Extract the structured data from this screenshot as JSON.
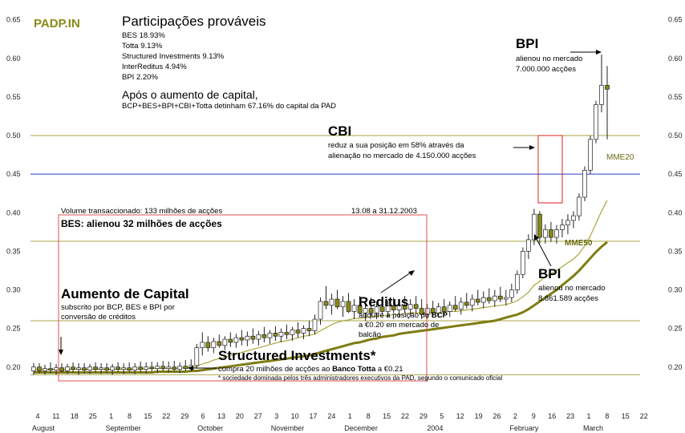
{
  "chart_data": {
    "type": "candlestick",
    "logo": "PADP.IN",
    "y_ticks": [
      "0.65",
      "0.60",
      "0.55",
      "0.50",
      "0.45",
      "0.40",
      "0.35",
      "0.30",
      "0.25",
      "0.20"
    ],
    "ylim": [
      0.18,
      0.66
    ],
    "x_day_labels": [
      "4",
      "11",
      "18",
      "25",
      "1",
      "8",
      "15",
      "22",
      "29",
      "6",
      "13",
      "20",
      "27",
      "3",
      "10",
      "17",
      "24",
      "1",
      "8",
      "15",
      "22",
      "29",
      "5",
      "12",
      "19",
      "26",
      "2",
      "9",
      "16",
      "23",
      "1",
      "8",
      "15",
      "22"
    ],
    "x_month_labels": [
      {
        "text": "August",
        "slot": 0
      },
      {
        "text": "September",
        "slot": 4
      },
      {
        "text": "October",
        "slot": 9
      },
      {
        "text": "November",
        "slot": 13
      },
      {
        "text": "December",
        "slot": 17
      },
      {
        "text": "2004",
        "slot": 21.5
      },
      {
        "text": "February",
        "slot": 26
      },
      {
        "text": "March",
        "slot": 30
      }
    ],
    "reference_lines": [
      {
        "value": 0.5,
        "color": "#a8a64a"
      },
      {
        "value": 0.45,
        "color": "#2a3cc8"
      },
      {
        "value": 0.363,
        "color": "#a8a64a"
      },
      {
        "value": 0.26,
        "color": "#a8a64a"
      },
      {
        "value": 0.19,
        "color": "#a8a64a"
      }
    ],
    "candles": [
      [
        0.195,
        0.205,
        0.19,
        0.2
      ],
      [
        0.2,
        0.205,
        0.192,
        0.195
      ],
      [
        0.195,
        0.203,
        0.19,
        0.198
      ],
      [
        0.198,
        0.206,
        0.192,
        0.196
      ],
      [
        0.196,
        0.204,
        0.19,
        0.199
      ],
      [
        0.199,
        0.205,
        0.193,
        0.195
      ],
      [
        0.195,
        0.204,
        0.191,
        0.2
      ],
      [
        0.2,
        0.206,
        0.193,
        0.197
      ],
      [
        0.197,
        0.205,
        0.19,
        0.199
      ],
      [
        0.199,
        0.205,
        0.192,
        0.196
      ],
      [
        0.196,
        0.204,
        0.191,
        0.2
      ],
      [
        0.2,
        0.206,
        0.193,
        0.197
      ],
      [
        0.197,
        0.205,
        0.191,
        0.199
      ],
      [
        0.199,
        0.205,
        0.192,
        0.196
      ],
      [
        0.196,
        0.204,
        0.19,
        0.2
      ],
      [
        0.2,
        0.206,
        0.193,
        0.197
      ],
      [
        0.197,
        0.205,
        0.191,
        0.199
      ],
      [
        0.199,
        0.206,
        0.193,
        0.196
      ],
      [
        0.196,
        0.205,
        0.191,
        0.2
      ],
      [
        0.2,
        0.207,
        0.193,
        0.197
      ],
      [
        0.197,
        0.206,
        0.192,
        0.2
      ],
      [
        0.2,
        0.207,
        0.194,
        0.198
      ],
      [
        0.198,
        0.206,
        0.192,
        0.201
      ],
      [
        0.201,
        0.208,
        0.195,
        0.198
      ],
      [
        0.198,
        0.207,
        0.193,
        0.2
      ],
      [
        0.2,
        0.208,
        0.194,
        0.197
      ],
      [
        0.197,
        0.206,
        0.192,
        0.201
      ],
      [
        0.201,
        0.209,
        0.195,
        0.198
      ],
      [
        0.198,
        0.21,
        0.194,
        0.202
      ],
      [
        0.202,
        0.23,
        0.198,
        0.225
      ],
      [
        0.225,
        0.245,
        0.215,
        0.232
      ],
      [
        0.232,
        0.24,
        0.22,
        0.225
      ],
      [
        0.225,
        0.238,
        0.218,
        0.233
      ],
      [
        0.233,
        0.242,
        0.225,
        0.228
      ],
      [
        0.228,
        0.24,
        0.222,
        0.236
      ],
      [
        0.236,
        0.245,
        0.226,
        0.232
      ],
      [
        0.232,
        0.243,
        0.225,
        0.238
      ],
      [
        0.238,
        0.248,
        0.228,
        0.235
      ],
      [
        0.235,
        0.246,
        0.227,
        0.24
      ],
      [
        0.24,
        0.25,
        0.23,
        0.236
      ],
      [
        0.236,
        0.247,
        0.228,
        0.242
      ],
      [
        0.242,
        0.252,
        0.232,
        0.238
      ],
      [
        0.238,
        0.248,
        0.23,
        0.244
      ],
      [
        0.244,
        0.253,
        0.234,
        0.24
      ],
      [
        0.24,
        0.25,
        0.232,
        0.245
      ],
      [
        0.245,
        0.255,
        0.236,
        0.242
      ],
      [
        0.242,
        0.252,
        0.234,
        0.248
      ],
      [
        0.248,
        0.258,
        0.238,
        0.244
      ],
      [
        0.244,
        0.254,
        0.236,
        0.25
      ],
      [
        0.25,
        0.26,
        0.24,
        0.247
      ],
      [
        0.247,
        0.268,
        0.242,
        0.262
      ],
      [
        0.262,
        0.29,
        0.255,
        0.285
      ],
      [
        0.285,
        0.305,
        0.275,
        0.28
      ],
      [
        0.28,
        0.295,
        0.268,
        0.288
      ],
      [
        0.288,
        0.3,
        0.275,
        0.278
      ],
      [
        0.278,
        0.292,
        0.265,
        0.285
      ],
      [
        0.285,
        0.296,
        0.27,
        0.272
      ],
      [
        0.272,
        0.288,
        0.262,
        0.28
      ],
      [
        0.28,
        0.292,
        0.268,
        0.27
      ],
      [
        0.27,
        0.285,
        0.26,
        0.276
      ],
      [
        0.276,
        0.29,
        0.266,
        0.27
      ],
      [
        0.27,
        0.285,
        0.262,
        0.278
      ],
      [
        0.278,
        0.29,
        0.268,
        0.272
      ],
      [
        0.272,
        0.286,
        0.264,
        0.279
      ],
      [
        0.279,
        0.29,
        0.27,
        0.274
      ],
      [
        0.274,
        0.288,
        0.264,
        0.28
      ],
      [
        0.28,
        0.292,
        0.27,
        0.275
      ],
      [
        0.275,
        0.288,
        0.266,
        0.281
      ],
      [
        0.281,
        0.292,
        0.27,
        0.276
      ],
      [
        0.276,
        0.288,
        0.262,
        0.268
      ],
      [
        0.268,
        0.282,
        0.262,
        0.276
      ],
      [
        0.276,
        0.286,
        0.266,
        0.27
      ],
      [
        0.27,
        0.283,
        0.264,
        0.278
      ],
      [
        0.278,
        0.288,
        0.268,
        0.272
      ],
      [
        0.272,
        0.285,
        0.265,
        0.28
      ],
      [
        0.28,
        0.292,
        0.272,
        0.275
      ],
      [
        0.275,
        0.29,
        0.268,
        0.284
      ],
      [
        0.284,
        0.296,
        0.276,
        0.28
      ],
      [
        0.28,
        0.294,
        0.272,
        0.288
      ],
      [
        0.288,
        0.3,
        0.28,
        0.284
      ],
      [
        0.284,
        0.298,
        0.276,
        0.29
      ],
      [
        0.29,
        0.302,
        0.282,
        0.286
      ],
      [
        0.286,
        0.3,
        0.278,
        0.292
      ],
      [
        0.292,
        0.304,
        0.284,
        0.288
      ],
      [
        0.288,
        0.3,
        0.28,
        0.29
      ],
      [
        0.29,
        0.308,
        0.284,
        0.3
      ],
      [
        0.3,
        0.325,
        0.295,
        0.32
      ],
      [
        0.32,
        0.355,
        0.315,
        0.35
      ],
      [
        0.35,
        0.372,
        0.34,
        0.365
      ],
      [
        0.365,
        0.405,
        0.358,
        0.398
      ],
      [
        0.398,
        0.402,
        0.36,
        0.368
      ],
      [
        0.368,
        0.385,
        0.36,
        0.378
      ],
      [
        0.378,
        0.388,
        0.362,
        0.368
      ],
      [
        0.368,
        0.384,
        0.36,
        0.378
      ],
      [
        0.378,
        0.392,
        0.368,
        0.384
      ],
      [
        0.384,
        0.398,
        0.372,
        0.39
      ],
      [
        0.39,
        0.402,
        0.38,
        0.396
      ],
      [
        0.396,
        0.425,
        0.39,
        0.42
      ],
      [
        0.42,
        0.46,
        0.415,
        0.455
      ],
      [
        0.455,
        0.5,
        0.45,
        0.495
      ],
      [
        0.495,
        0.545,
        0.49,
        0.54
      ],
      [
        0.54,
        0.605,
        0.53,
        0.565
      ],
      [
        0.565,
        0.59,
        0.495,
        0.56
      ]
    ],
    "mme20": [
      0.197,
      0.197,
      0.197,
      0.197,
      0.197,
      0.197,
      0.197,
      0.197,
      0.197,
      0.197,
      0.197,
      0.197,
      0.197,
      0.197,
      0.197,
      0.197,
      0.197,
      0.197,
      0.197,
      0.197,
      0.198,
      0.198,
      0.198,
      0.198,
      0.198,
      0.198,
      0.199,
      0.199,
      0.199,
      0.201,
      0.204,
      0.206,
      0.209,
      0.211,
      0.213,
      0.215,
      0.217,
      0.219,
      0.221,
      0.223,
      0.225,
      0.227,
      0.229,
      0.231,
      0.233,
      0.234,
      0.236,
      0.238,
      0.24,
      0.241,
      0.243,
      0.247,
      0.251,
      0.255,
      0.258,
      0.26,
      0.261,
      0.263,
      0.263,
      0.264,
      0.265,
      0.266,
      0.266,
      0.267,
      0.268,
      0.268,
      0.269,
      0.27,
      0.27,
      0.27,
      0.27,
      0.27,
      0.271,
      0.271,
      0.272,
      0.272,
      0.273,
      0.274,
      0.275,
      0.276,
      0.277,
      0.278,
      0.279,
      0.28,
      0.281,
      0.283,
      0.286,
      0.291,
      0.297,
      0.306,
      0.311,
      0.317,
      0.321,
      0.325,
      0.33,
      0.335,
      0.34,
      0.347,
      0.357,
      0.37,
      0.386,
      0.402,
      0.416
    ],
    "mme50": [
      0.193,
      0.193,
      0.193,
      0.193,
      0.193,
      0.193,
      0.193,
      0.193,
      0.193,
      0.193,
      0.193,
      0.193,
      0.193,
      0.193,
      0.193,
      0.193,
      0.193,
      0.193,
      0.193,
      0.193,
      0.193,
      0.193,
      0.194,
      0.194,
      0.194,
      0.194,
      0.194,
      0.194,
      0.195,
      0.195,
      0.196,
      0.197,
      0.198,
      0.199,
      0.2,
      0.201,
      0.202,
      0.203,
      0.204,
      0.205,
      0.206,
      0.207,
      0.208,
      0.209,
      0.21,
      0.211,
      0.212,
      0.213,
      0.214,
      0.215,
      0.217,
      0.219,
      0.221,
      0.223,
      0.225,
      0.227,
      0.229,
      0.231,
      0.232,
      0.234,
      0.236,
      0.237,
      0.239,
      0.24,
      0.241,
      0.243,
      0.244,
      0.245,
      0.246,
      0.247,
      0.248,
      0.249,
      0.25,
      0.251,
      0.252,
      0.253,
      0.254,
      0.255,
      0.256,
      0.257,
      0.258,
      0.259,
      0.26,
      0.262,
      0.264,
      0.266,
      0.268,
      0.271,
      0.275,
      0.28,
      0.285,
      0.29,
      0.295,
      0.3,
      0.306,
      0.312,
      0.318,
      0.325,
      0.333,
      0.341,
      0.349,
      0.356,
      0.362
    ]
  },
  "labels": {
    "mme20": "MME20",
    "mme50": "MME50"
  },
  "annotations": {
    "participacoes": {
      "title": "Participações prováveis",
      "lines": [
        "BES 18.93%",
        "Totta 9.13%",
        "Structured Investments 9.13%",
        "InterReditus 4.94%",
        "BPI 2.20%"
      ]
    },
    "apos": {
      "title": "Após o aumento de capital,",
      "line": "BCP+BES+BPI+CBI+Totta detinham 67.16% do capital da PAD"
    },
    "bpi_top": {
      "title": "BPI",
      "lines": [
        "alienou no mercado",
        "7.000.000 acções"
      ]
    },
    "cbi": {
      "title": "CBI",
      "lines": [
        "reduz a sua posição em 58% através da",
        "alienação no mercado de 4.150.000 acções"
      ]
    },
    "volume": {
      "text": "Volume transaccionado: 133 milhões de acções",
      "period": "13.08 a 31.12.2003",
      "bes": "BES: alienou 32 milhões de acções"
    },
    "aumento": {
      "title": "Aumento de Capital",
      "lines": [
        "subscrito por BCP, BES e BPI por",
        "conversão de créditos"
      ]
    },
    "reditus": {
      "title": "Reditus",
      "line1_pre": "adquire a posição do ",
      "line1_bold": "BCP",
      "lines": [
        "a €0.20 em mercado de",
        "balcão"
      ]
    },
    "structured": {
      "title": "Structured Investments*",
      "line_pre": "compra 20 milhões de acções ao ",
      "line_bold": "Banco Totta",
      "line_post": " a €0.21",
      "footnote": "* sociedade dominada pelos três administradores executivos da PAD, segundo o comunicado oficial"
    },
    "bpi_low": {
      "title": "BPI",
      "lines": [
        "alienou no mercado",
        "8.861.589 acções"
      ]
    }
  }
}
